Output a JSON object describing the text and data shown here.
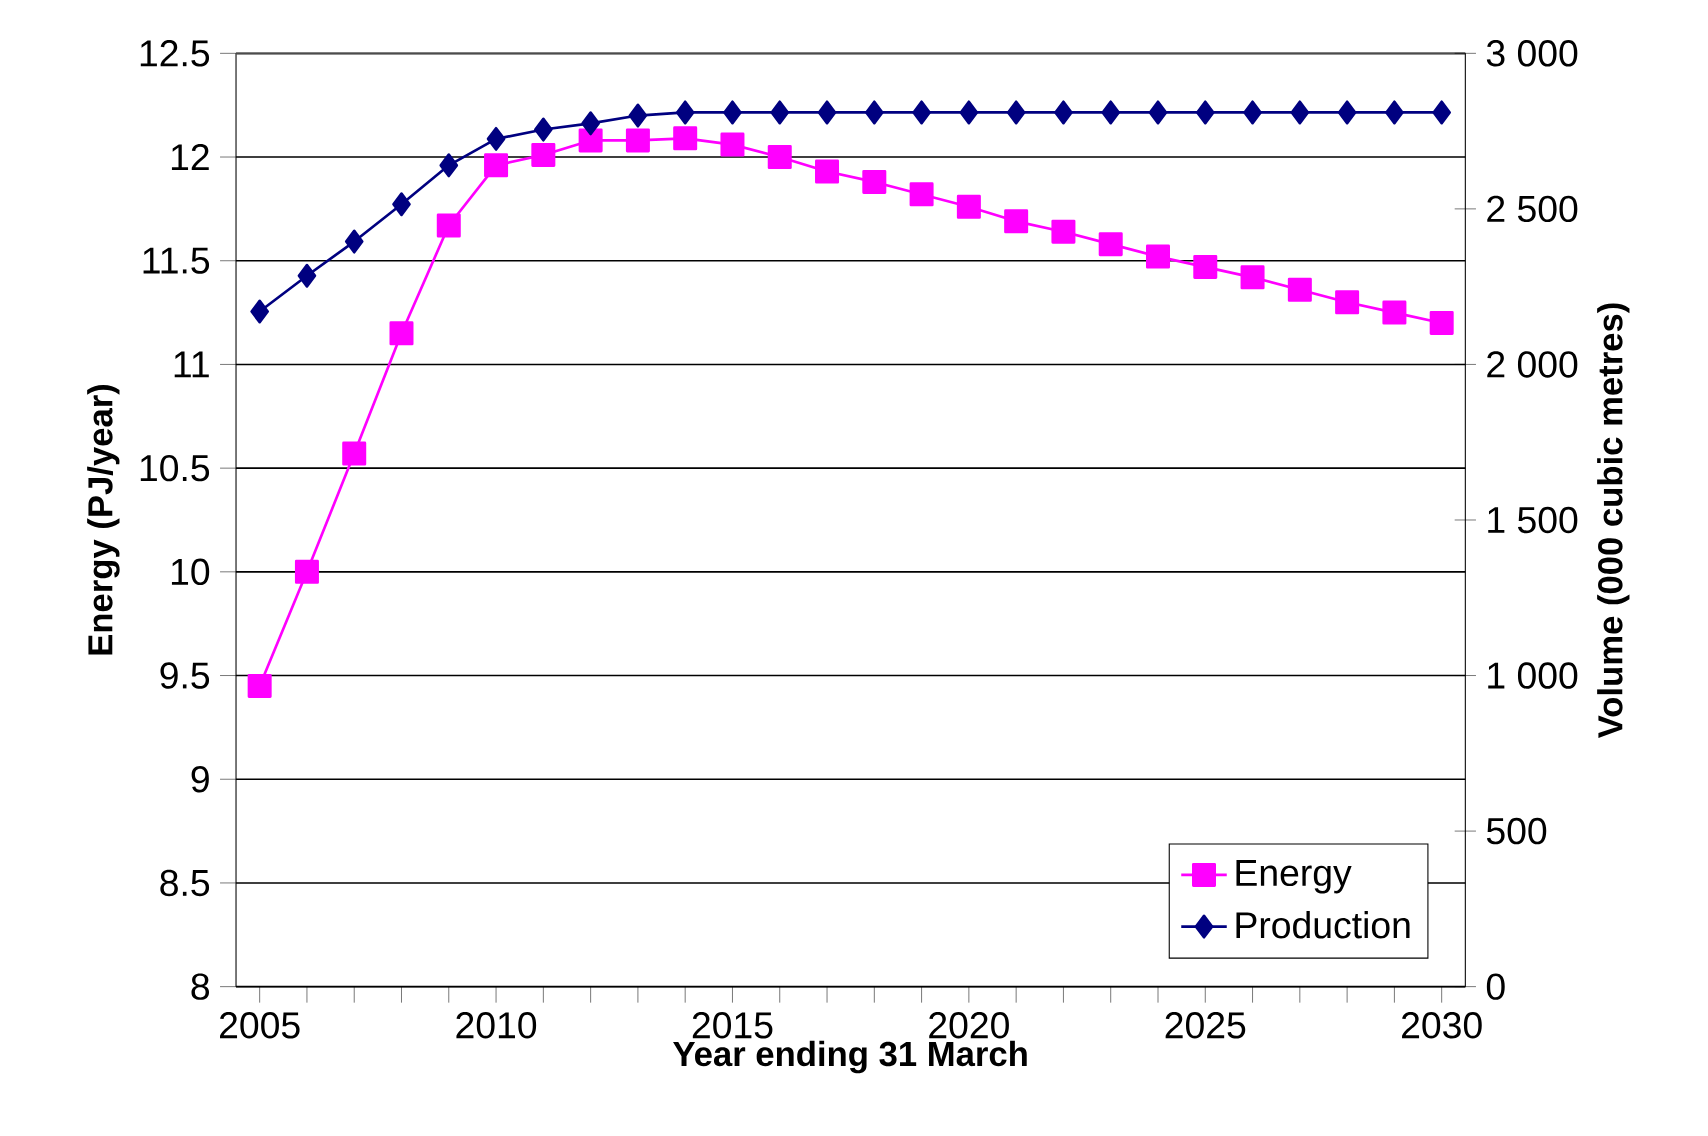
{
  "chart_data": {
    "type": "line",
    "xlabel": "Year ending 31 March",
    "ylabel": "Energy (PJ/year)",
    "y2label": "Volume (000 cubic metres)",
    "x": [
      2005,
      2006,
      2007,
      2008,
      2009,
      2010,
      2011,
      2012,
      2013,
      2014,
      2015,
      2016,
      2017,
      2018,
      2019,
      2020,
      2021,
      2022,
      2023,
      2024,
      2025,
      2026,
      2027,
      2028,
      2029,
      2030
    ],
    "xlim": [
      2004.5,
      2030.5
    ],
    "xticks": [
      2005,
      2010,
      2015,
      2020,
      2025,
      2030
    ],
    "ylim": [
      8,
      12.5
    ],
    "yticks": [
      8,
      8.5,
      9,
      9.5,
      10,
      10.5,
      11,
      11.5,
      12,
      12.5
    ],
    "y2lim": [
      0,
      3000
    ],
    "y2ticks": [
      0,
      500,
      {
        "value": 1000,
        "label": "1 000"
      },
      {
        "value": 1500,
        "label": "1 500"
      },
      {
        "value": 2000,
        "label": "2 000"
      },
      {
        "value": 2500,
        "label": "2 500"
      },
      {
        "value": 3000,
        "label": "3 000"
      }
    ],
    "grid": "y",
    "legend": "bottom right",
    "line_style": "solid",
    "series": [
      {
        "name": "Energy",
        "color": "#ff00ff",
        "marker": "square",
        "values": [
          9.45,
          10.0,
          10.57,
          11.15,
          11.67,
          11.96,
          12.01,
          12.08,
          12.08,
          12.09,
          12.06,
          12.0,
          11.93,
          11.88,
          11.82,
          11.76,
          11.69,
          11.64,
          11.58,
          11.52,
          11.47,
          11.42,
          11.36,
          11.3,
          11.25,
          11.2
        ]
      },
      {
        "name": "Production",
        "color": "#000080",
        "marker": "diamond",
        "axis": "y2",
        "values": [
          2170,
          2285,
          2395,
          2515,
          2640,
          2725,
          2755,
          2775,
          2800,
          2810,
          2810,
          2810,
          2810,
          2810,
          2810,
          2810,
          2810,
          2810,
          2810,
          2810,
          2810,
          2810,
          2810,
          2810,
          2810,
          2810
        ]
      }
    ]
  }
}
